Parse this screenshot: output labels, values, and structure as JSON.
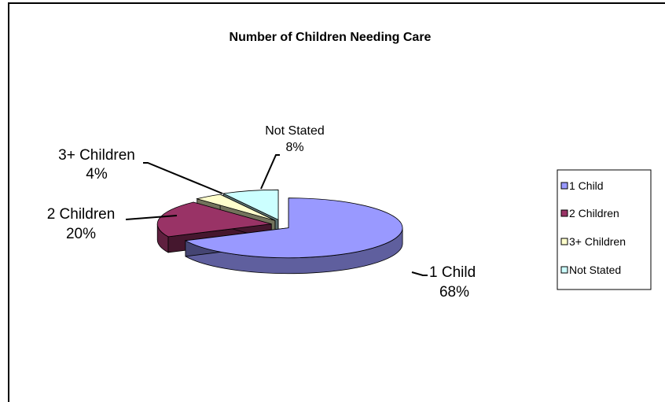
{
  "chart_data": {
    "type": "pie",
    "title": "Number of Children Needing Care",
    "categories": [
      "1 Child",
      "2 Children",
      "3+ Children",
      "Not Stated"
    ],
    "values": [
      68,
      20,
      4,
      8
    ],
    "value_labels": [
      "68%",
      "20%",
      "4%",
      "8%"
    ],
    "colors": [
      "#9999FF",
      "#993366",
      "#FFFFCC",
      "#CCFFFF"
    ],
    "legend_placement": "right",
    "exploded": true,
    "three_d": true
  },
  "labels": {
    "c1_name": "1 Child",
    "c1_pct": "68%",
    "c2_name": "2 Children",
    "c2_pct": "20%",
    "c3_name": "3+ Children",
    "c3_pct": "4%",
    "c4_name": "Not Stated",
    "c4_pct": "8%"
  },
  "legend": {
    "items": [
      "1 Child",
      "2 Children",
      "3+ Children",
      "Not Stated"
    ]
  }
}
